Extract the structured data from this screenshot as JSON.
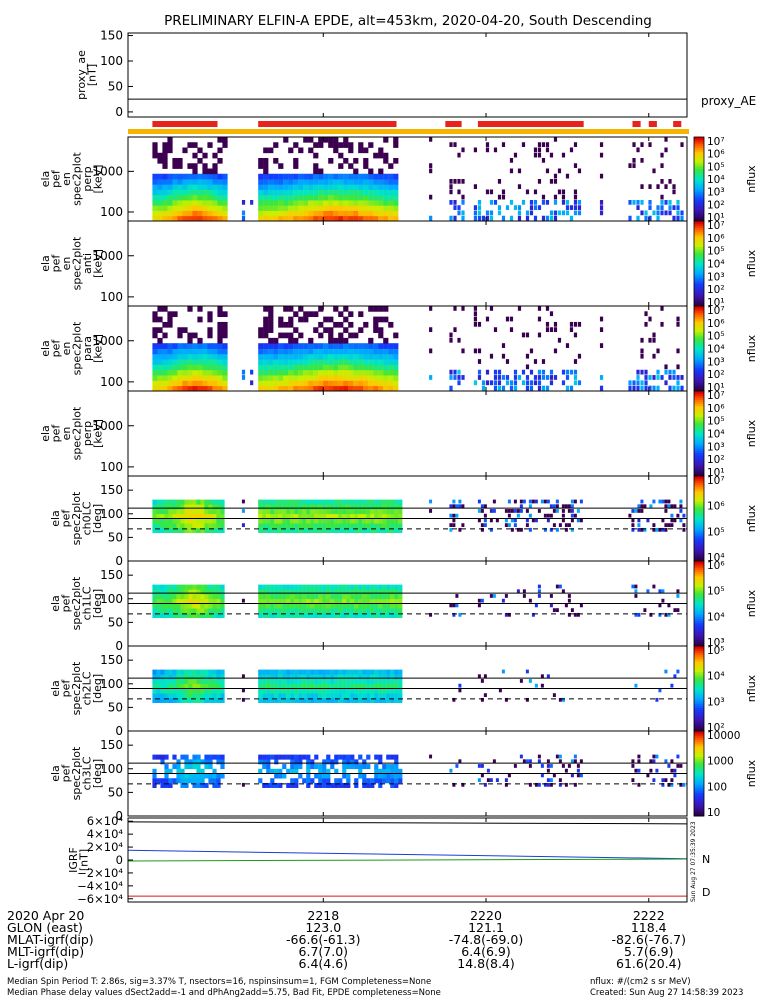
{
  "title": "PRELIMINARY ELFIN-A EPDE, alt=453km, 2020-04-20, South Descending",
  "colors": {
    "sci_zone": "#e8231c",
    "orbit_bar": "#f5b400",
    "igrf_n": "#1a3fd6",
    "igrf_e": "#1a9a1a",
    "igrf_d": "#d81818",
    "igrf_tot": "#000000"
  },
  "panels": {
    "ae": {
      "ylabel_lines": [
        "proxy_ae",
        "[nT]"
      ],
      "legend": "proxy_AE",
      "yticks": [
        "150",
        "100",
        "50",
        "0"
      ]
    },
    "spec_en_perp": {
      "ylabel_lines": [
        "ela",
        "pef",
        "en",
        "spec2plot",
        "perp",
        "[keV]"
      ],
      "yticks": [
        "1000",
        "100"
      ]
    },
    "spec_en_anti": {
      "ylabel_lines": [
        "ela",
        "pef",
        "en",
        "spec2plot",
        "anti",
        "[keV]"
      ],
      "yticks": [
        "1000",
        "100"
      ]
    },
    "spec_en_para": {
      "ylabel_lines": [
        "ela",
        "pef",
        "en",
        "spec2plot",
        "para",
        "[keV]"
      ],
      "yticks": [
        "1000",
        "100"
      ]
    },
    "spec_en_perp2": {
      "ylabel_lines": [
        "ela",
        "pef",
        "en",
        "spec2plot",
        "perp",
        "[keV]"
      ],
      "yticks": [
        "1000",
        "100"
      ]
    },
    "pa_ch0": {
      "ylabel_lines": [
        "ela",
        "pef",
        "spec2plot",
        "ch0LC",
        "[deg]"
      ],
      "yticks": [
        "150",
        "100",
        "50",
        "0"
      ]
    },
    "pa_ch1": {
      "ylabel_lines": [
        "ela",
        "pef",
        "spec2plot",
        "ch1LC",
        "[deg]"
      ],
      "yticks": [
        "150",
        "100",
        "50",
        "0"
      ]
    },
    "pa_ch2": {
      "ylabel_lines": [
        "ela",
        "pef",
        "spec2plot",
        "ch2LC",
        "[deg]"
      ],
      "yticks": [
        "150",
        "100",
        "50",
        "0"
      ]
    },
    "pa_ch3": {
      "ylabel_lines": [
        "ela",
        "pef",
        "spec2plot",
        "ch3LC",
        "[deg]"
      ],
      "yticks": [
        "150",
        "100",
        "50",
        "0"
      ]
    },
    "igrf": {
      "ylabel_lines": [
        "IGRF",
        "[nT]"
      ],
      "yticks": [
        "6×10⁴",
        "4×10⁴",
        "2×10⁴",
        "0",
        "−2×10⁴",
        "−4×10⁴",
        "−6×10⁴"
      ],
      "legend_n": "N",
      "legend_d": "D",
      "stamp": "Sun Aug 27 07:35:39 2023"
    }
  },
  "colorbars": [
    {
      "unit": "nflux",
      "ticks": [
        "10⁷",
        "10⁶",
        "10⁵",
        "10⁴",
        "10³",
        "10²",
        "10¹"
      ]
    },
    {
      "unit": "nflux",
      "ticks": [
        "10⁷",
        "10⁶",
        "10⁵",
        "10⁴",
        "10³",
        "10²",
        "10¹"
      ]
    },
    {
      "unit": "nflux",
      "ticks": [
        "10⁷",
        "10⁶",
        "10⁵",
        "10⁴",
        "10³",
        "10²",
        "10¹"
      ]
    },
    {
      "unit": "nflux",
      "ticks": [
        "10⁷",
        "10⁶",
        "10⁵",
        "10⁴",
        "10³",
        "10²",
        "10¹"
      ]
    },
    {
      "unit": "nflux",
      "ticks": [
        "10⁷",
        "10⁶",
        "10⁵",
        "10⁴"
      ]
    },
    {
      "unit": "nflux",
      "ticks": [
        "10⁶",
        "10⁵",
        "10⁴",
        "10³"
      ]
    },
    {
      "unit": "nflux",
      "ticks": [
        "10⁵",
        "10⁴",
        "10³",
        "10²"
      ]
    },
    {
      "unit": "nflux",
      "ticks": [
        "10000",
        "1000",
        "100",
        "10"
      ]
    }
  ],
  "xaxis": {
    "labels": [
      "2020 Apr 20",
      "GLON (east)",
      "MLAT-igrf(dip)",
      "MLT-igrf(dip)",
      "L-igrf(dip)"
    ],
    "columns": [
      {
        "time": "2218",
        "glon": "123.0",
        "mlat": "-66.6(-61.3)",
        "mlt": "6.7(7.0)",
        "l": "6.4(4.6)"
      },
      {
        "time": "2220",
        "glon": "121.1",
        "mlat": "-74.8(-69.0)",
        "mlt": "6.4(6.9)",
        "l": "14.8(8.4)"
      },
      {
        "time": "2222",
        "glon": "118.4",
        "mlat": "-82.6(-76.7)",
        "mlt": "5.7(6.9)",
        "l": "61.6(20.4)"
      }
    ]
  },
  "footer": {
    "left1": "Median Spin Period T: 2.86s, sig=3.37% T, nsectors=16, nspinsinsum=1, FGM Completeness=None",
    "left2": "Median Phase delay values dSect2add=-1 and dPhAng2add=5.75, Bad Fit, EPDE completeness=None",
    "right1": "nflux: #/(cm2 s sr MeV)",
    "right2": "Created: Sun Aug 27 14:58:39 2023"
  },
  "chart_data": {
    "type": "heatmap",
    "title": "PRELIMINARY ELFIN-A EPDE, alt=453km, 2020-04-20, South Descending",
    "x_ticks": [
      "2218",
      "2220",
      "2222"
    ],
    "sci_zones": [
      [
        "22:15.9",
        "22:16.7"
      ],
      [
        "22:17.2",
        "22:18.9"
      ],
      [
        "22:19.5",
        "22:19.7"
      ],
      [
        "22:19.9",
        "22:21.2"
      ],
      [
        "22:21.8",
        "22:21.9"
      ],
      [
        "22:22.0",
        "22:22.1"
      ],
      [
        "22:22.3",
        "22:22.4"
      ]
    ],
    "proxy_ae": {
      "ylim": [
        -10,
        155
      ],
      "value": 25
    },
    "energy_spectra": {
      "ylabel": "[keV]",
      "yscale": "log",
      "ylim": [
        60,
        7000
      ],
      "z_unit": "nflux",
      "z_range": [
        "10¹",
        "10⁷"
      ]
    },
    "pitch_angle_spectra": {
      "ylabel": "[deg]",
      "ylim": [
        0,
        180
      ],
      "lines": [
        112,
        90,
        68
      ]
    },
    "igrf": {
      "ylabel": "[nT]",
      "ylim": [
        -65000,
        65000
      ],
      "series": [
        {
          "name": "N",
          "values": [
            15000,
            2000
          ]
        },
        {
          "name": "D",
          "values": [
            -56000,
            -56000
          ]
        }
      ]
    }
  }
}
